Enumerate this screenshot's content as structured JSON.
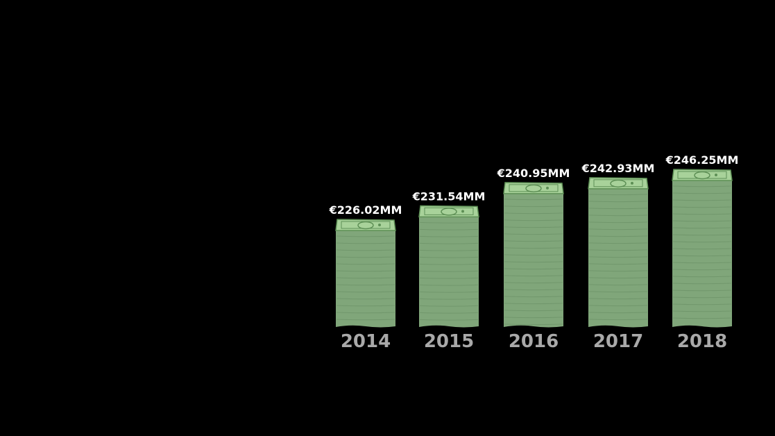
{
  "chart_data": {
    "type": "bar",
    "categories": [
      "2014",
      "2015",
      "2016",
      "2017",
      "2018"
    ],
    "values": [
      226.02,
      231.54,
      240.95,
      242.93,
      246.25
    ],
    "data_labels": [
      "€226.02MM",
      "€231.54MM",
      "€240.95MM",
      "€242.93MM",
      "€246.25MM"
    ],
    "unit": "€ MM",
    "grid": false,
    "legend": "none",
    "bar_style": "stack-of-banknotes"
  },
  "colors": {
    "background": "#000000",
    "stack_body": "#80a67a",
    "stack_line": "#6b9166",
    "bill_top": "#a8d29a",
    "bill_border": "#5d8f55",
    "value_label": "#ffffff",
    "year_label": "#a9a9a9"
  },
  "icons": {
    "bill": "euro-banknote-icon"
  }
}
